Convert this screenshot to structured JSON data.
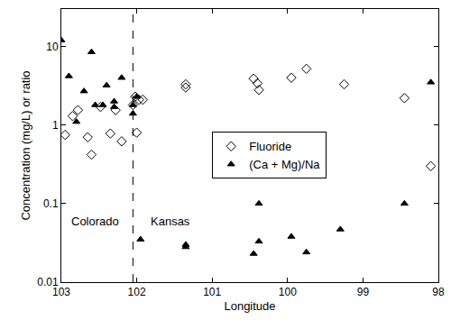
{
  "chart_data": {
    "type": "scatter",
    "x_label": "Longitude",
    "y_label": "Concentration (mg/L) or ratio",
    "log": "y",
    "grid": false,
    "legend": "center",
    "xlim": [
      103,
      98
    ],
    "xticks": [
      103,
      102,
      101,
      100,
      99,
      98
    ],
    "ylim": [
      0.01,
      30
    ],
    "yticks": [
      0.01,
      0.1,
      1,
      10
    ],
    "vlines": [
      {
        "x": 102.05,
        "line_style": "dash"
      }
    ],
    "annotations": [
      {
        "text": "Colorado",
        "x": 102.55,
        "y": 0.06
      },
      {
        "text": "Kansas",
        "x": 101.55,
        "y": 0.06
      }
    ],
    "series": [
      {
        "name": "Fluoride",
        "color": "#000000",
        "marker": "diamond-open",
        "x": [
          102.95,
          102.85,
          102.78,
          102.65,
          102.6,
          102.48,
          102.35,
          102.28,
          102.2,
          102.05,
          102.02,
          102.0,
          101.97,
          101.92,
          101.35,
          101.35,
          100.45,
          100.4,
          100.38,
          99.95,
          99.75,
          99.25,
          98.45,
          98.1
        ],
        "values": [
          0.75,
          1.3,
          1.55,
          0.7,
          0.42,
          1.7,
          0.78,
          1.55,
          0.62,
          1.8,
          2.3,
          0.8,
          2.1,
          2.1,
          3.3,
          3.0,
          3.9,
          3.4,
          2.8,
          4.0,
          5.2,
          3.3,
          2.2,
          0.3
        ]
      },
      {
        "name": "(Ca + Mg)/Na",
        "color": "#000000",
        "marker": "triangle-up",
        "x": [
          103.0,
          102.9,
          102.8,
          102.7,
          102.6,
          102.55,
          102.45,
          102.4,
          102.3,
          102.3,
          102.2,
          102.05,
          102.0,
          102.05,
          101.95,
          101.35,
          101.35,
          100.45,
          100.38,
          100.38,
          99.95,
          99.75,
          99.3,
          98.45,
          98.1
        ],
        "values": [
          12,
          4.2,
          1.1,
          2.7,
          8.5,
          1.8,
          1.8,
          3.2,
          2.0,
          1.7,
          4.0,
          1.8,
          2.3,
          1.4,
          0.035,
          0.03,
          0.028,
          0.023,
          0.1,
          0.033,
          0.038,
          0.024,
          0.047,
          0.1,
          3.5
        ]
      }
    ]
  }
}
